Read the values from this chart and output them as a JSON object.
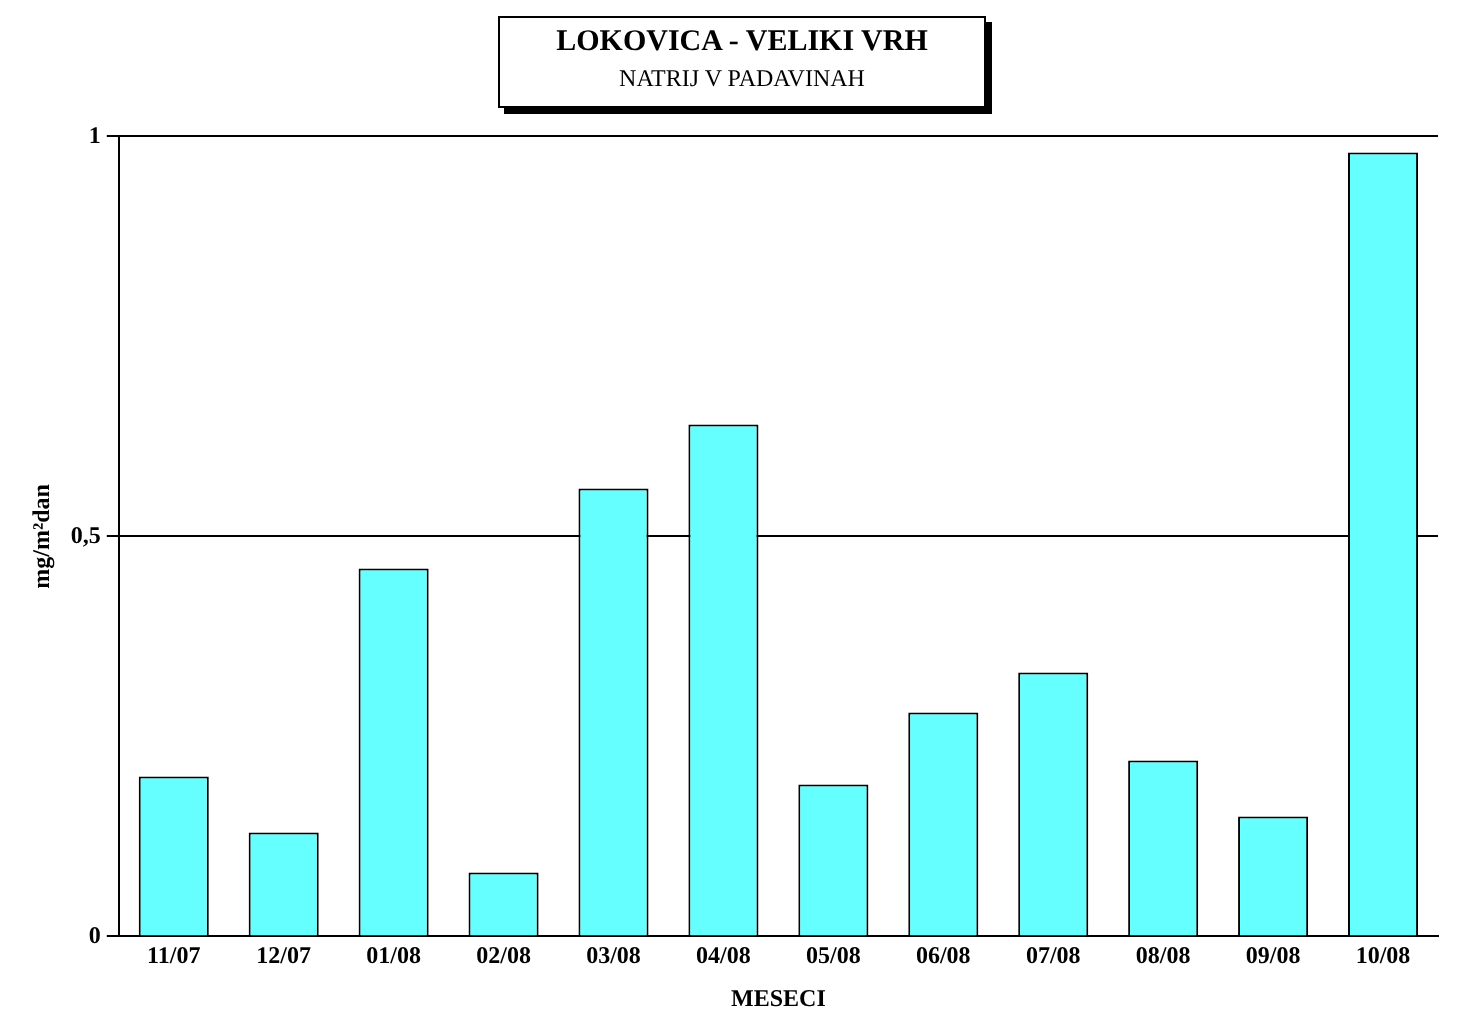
{
  "chart_data": {
    "type": "bar",
    "title": "LOKOVICA - VELIKI VRH",
    "subtitle": "NATRIJ V PADAVINAH",
    "xlabel": "MESECI",
    "ylabel": "mg/m²dan",
    "categories": [
      "11/07",
      "12/07",
      "01/08",
      "02/08",
      "03/08",
      "04/08",
      "05/08",
      "06/08",
      "07/08",
      "08/08",
      "09/08",
      "10/08"
    ],
    "values": [
      0.2,
      0.13,
      0.46,
      0.08,
      0.56,
      0.64,
      0.19,
      0.28,
      0.33,
      0.22,
      0.15,
      0.98
    ],
    "color": "#66ffff",
    "ylim": [
      0,
      1
    ],
    "yticks": [
      {
        "value": 0,
        "label": "0"
      },
      {
        "value": 0.5,
        "label": "0,5"
      },
      {
        "value": 1,
        "label": "1"
      }
    ],
    "grid": "y",
    "legend": false
  }
}
